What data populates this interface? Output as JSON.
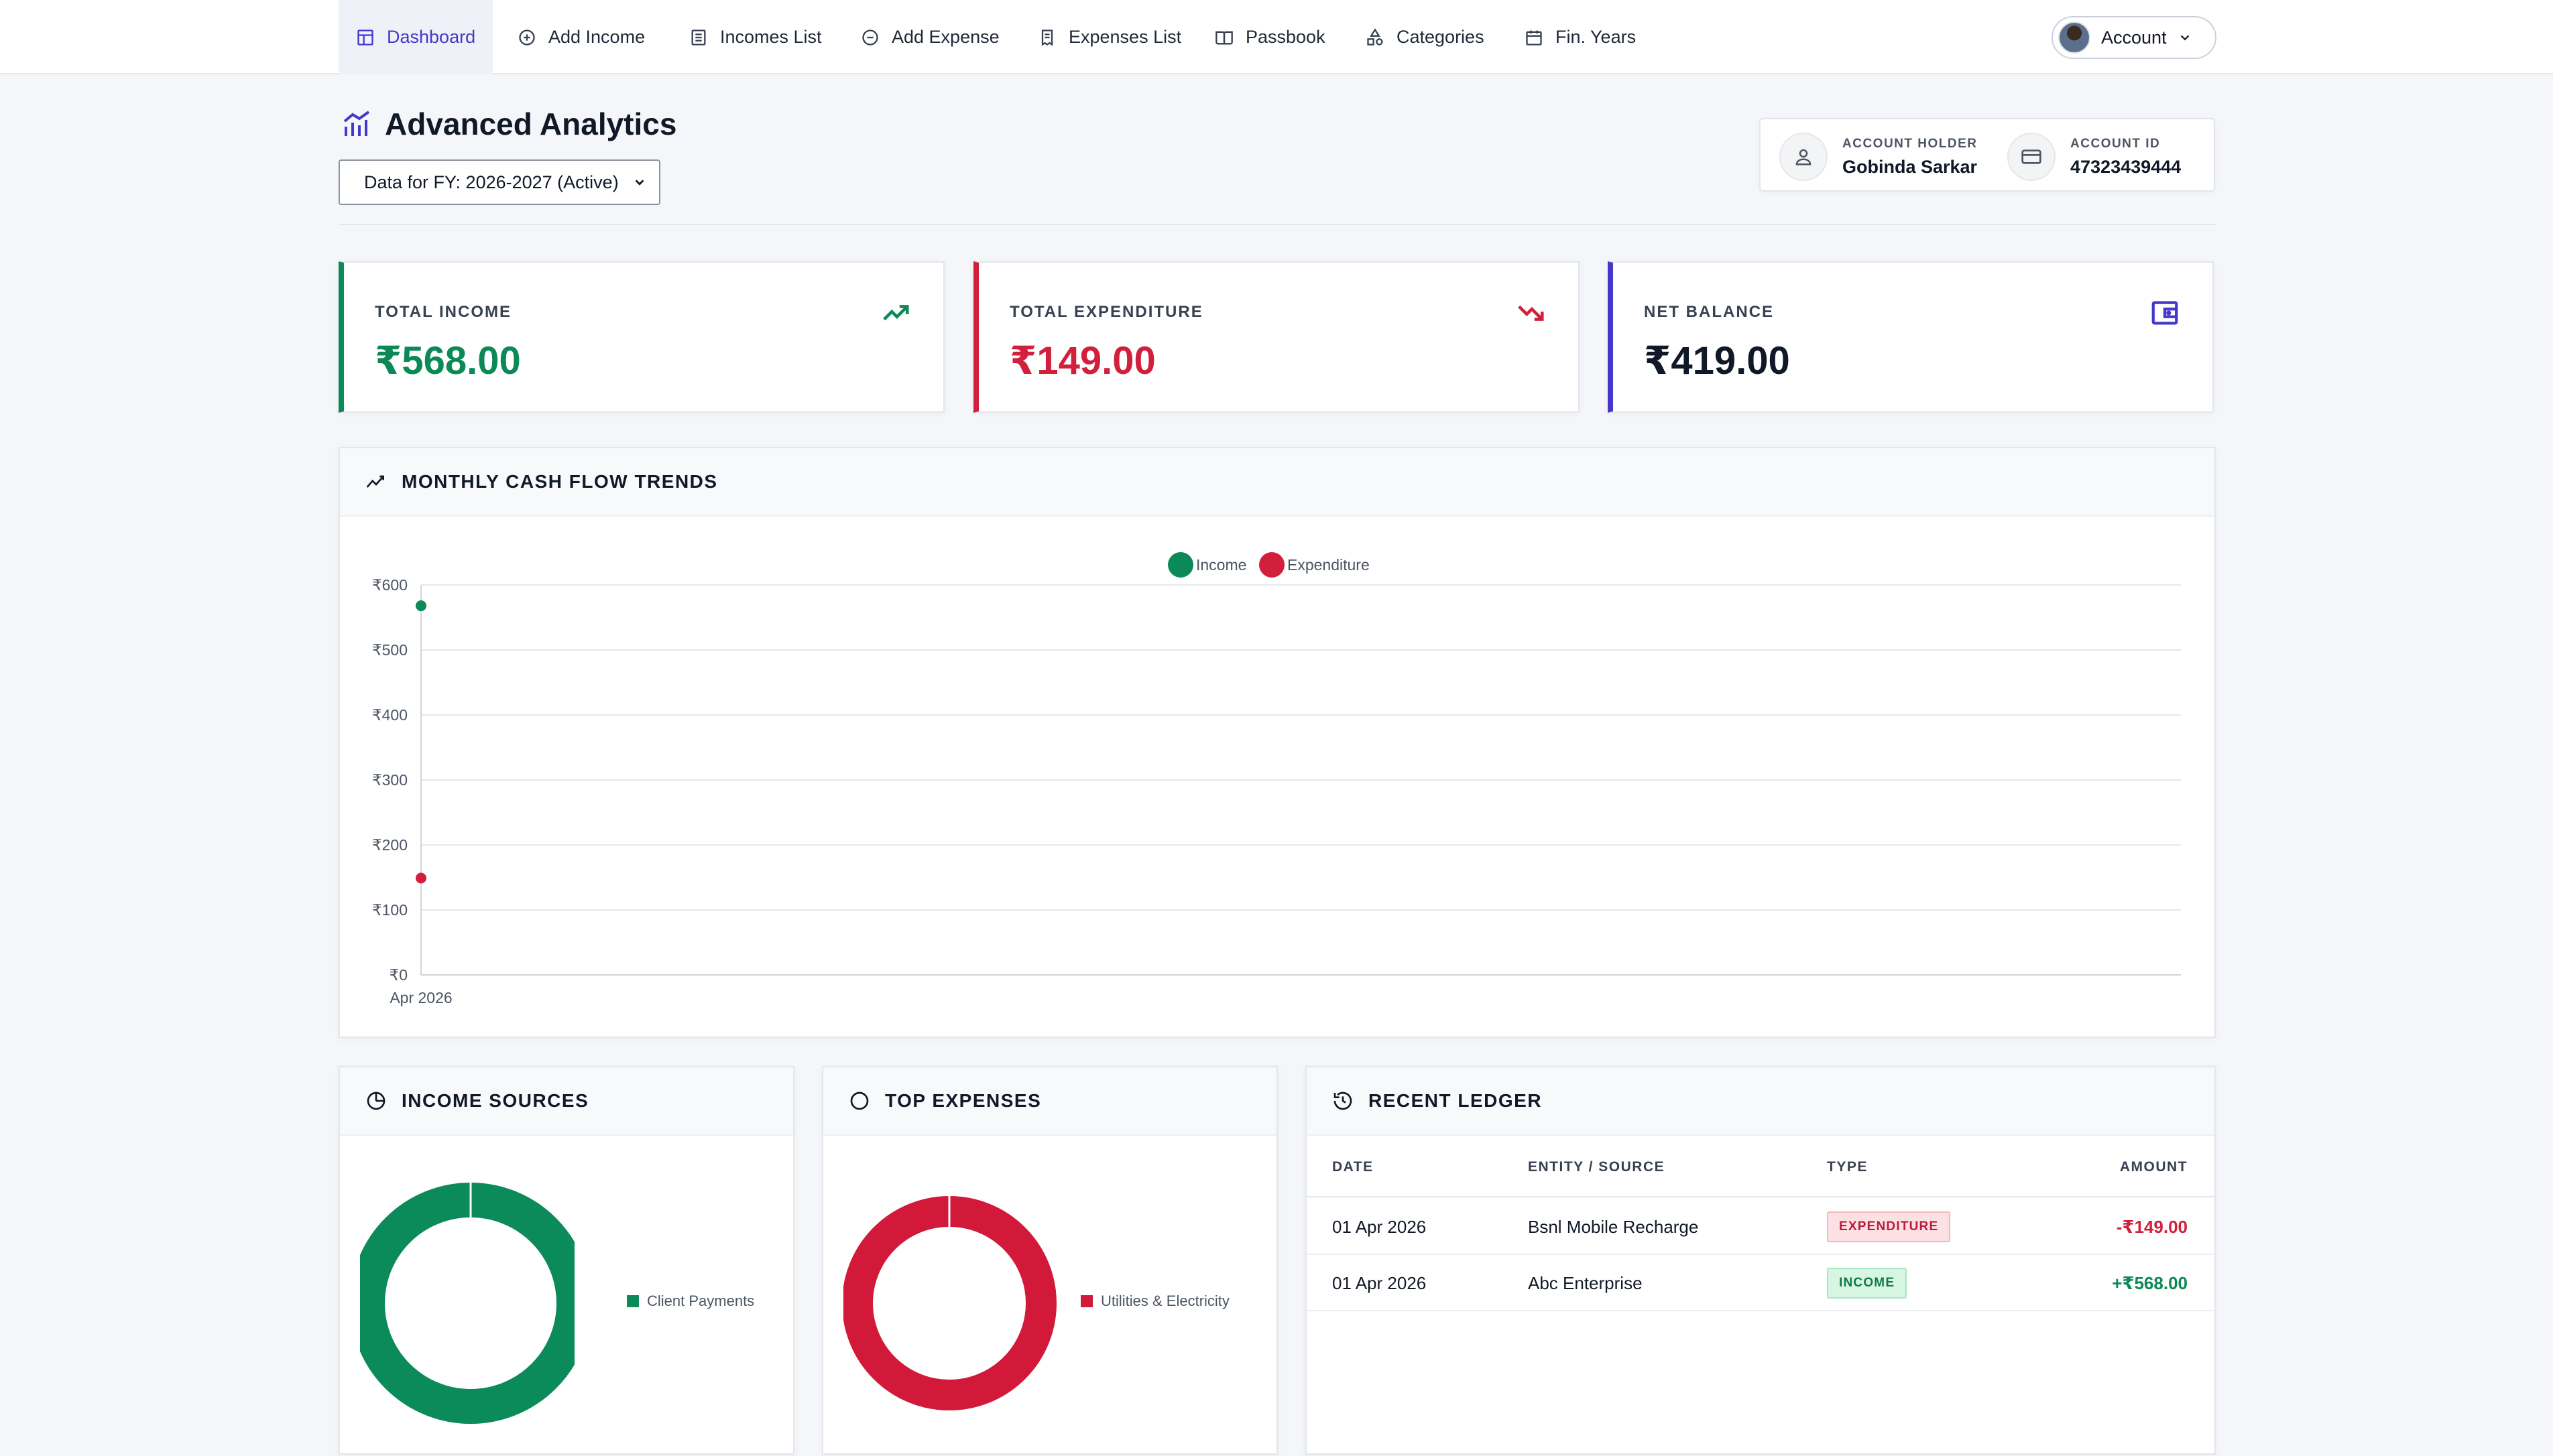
{
  "nav": {
    "items": [
      {
        "label": "Dashboard",
        "icon": "layout-grid-icon",
        "active": true
      },
      {
        "label": "Add Income",
        "icon": "plus-circle-icon"
      },
      {
        "label": "Incomes List",
        "icon": "list-icon"
      },
      {
        "label": "Add Expense",
        "icon": "minus-circle-icon"
      },
      {
        "label": "Expenses List",
        "icon": "receipt-icon"
      },
      {
        "label": "Passbook",
        "icon": "book-icon"
      },
      {
        "label": "Categories",
        "icon": "shapes-icon"
      },
      {
        "label": "Fin. Years",
        "icon": "calendar-icon"
      }
    ],
    "account_label": "Account"
  },
  "header": {
    "title": "Advanced Analytics",
    "fy_select": "Data for FY: 2026-2027 (Active)",
    "holder_label": "ACCOUNT HOLDER",
    "holder_name": "Gobinda Sarkar",
    "id_label": "ACCOUNT ID",
    "id_value": "47323439444"
  },
  "stats": [
    {
      "label": "TOTAL INCOME",
      "value": "₹568.00",
      "color": "#0b8a57"
    },
    {
      "label": "TOTAL EXPENDITURE",
      "value": "₹149.00",
      "color": "#d21f3c"
    },
    {
      "label": "NET BALANCE",
      "value": "₹419.00",
      "color": "#111827",
      "accent": "#4338ca"
    }
  ],
  "trend": {
    "title": "MONTHLY CASH FLOW TRENDS"
  },
  "chart_data": {
    "type": "line",
    "title": "MONTHLY CASH FLOW TRENDS",
    "categories": [
      "Apr 2026"
    ],
    "series": [
      {
        "name": "Income",
        "values": [
          568
        ],
        "color": "#0b8a57"
      },
      {
        "name": "Expenditure",
        "values": [
          149
        ],
        "color": "#d21f3c"
      }
    ],
    "yticks": [
      "₹0",
      "₹100",
      "₹200",
      "₹300",
      "₹400",
      "₹500",
      "₹600"
    ],
    "ylim": [
      0,
      600
    ],
    "legend": "top-center",
    "grid": true
  },
  "income_sources": {
    "title": "INCOME SOURCES",
    "slices": [
      {
        "label": "Client Payments",
        "value": 568,
        "color": "#0b8a5a"
      }
    ]
  },
  "top_expenses": {
    "title": "TOP EXPENSES",
    "slices": [
      {
        "label": "Utilities & Electricity",
        "value": 149,
        "color": "#d2193a"
      }
    ]
  },
  "ledger": {
    "title": "RECENT LEDGER",
    "headers": {
      "date": "DATE",
      "entity": "ENTITY / SOURCE",
      "type": "TYPE",
      "amount": "AMOUNT"
    },
    "rows": [
      {
        "date": "01 Apr 2026",
        "entity": "Bsnl Mobile Recharge",
        "type": "EXPENDITURE",
        "amount": "-₹149.00"
      },
      {
        "date": "01 Apr 2026",
        "entity": "Abc Enterprise",
        "type": "INCOME",
        "amount": "+₹568.00"
      }
    ]
  }
}
